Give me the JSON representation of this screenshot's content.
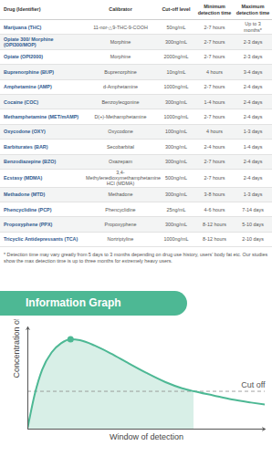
{
  "table": {
    "header": [
      "Drug (Identifier)",
      "Calibrator",
      "Cut-off level",
      "Minimum detection time",
      "Maximum detection time"
    ],
    "rows": [
      [
        "Marijuana (THC)",
        "11-nor-△9-THC-9-COOH",
        "50ng/mL",
        "2-7 hours",
        "Up to 3 months*"
      ],
      [
        "Opiate 300/ Morphine (OPI300/MOP)",
        "Morphine",
        "300ng/mL",
        "2-7 hours",
        "2-3 days"
      ],
      [
        "Opiate (OPI2000)",
        "Morphine",
        "2000ng/mL",
        "2-7 hours",
        "2-3 days"
      ],
      [
        "Buprenorphine (BUP)",
        "Buprenorphine",
        "10ng/mL",
        "4 hours",
        "3-4 days"
      ],
      [
        "Amphetamine (AMP)",
        "d-Amphetamine",
        "1000ng/mL",
        "2-7 hours",
        "2-4 days"
      ],
      [
        "Cocaine (COC)",
        "Benzoylecgonine",
        "300ng/mL",
        "1-4 hours",
        "2-4 days"
      ],
      [
        "Methamphetamine (MET/mAMP)",
        "D(+)-Methamphetamine",
        "1000ng/mL",
        "2-7 hours",
        "2-4 days"
      ],
      [
        "Oxycodone (OXY)",
        "Oxycodone",
        "100ng/mL",
        "4 hours",
        "1-3 days"
      ],
      [
        "Barbiturates (BAR)",
        "Secobarbital",
        "300ng/mL",
        "2-4 hours",
        "1-4 days"
      ],
      [
        "Benzodiazepine (BZO)",
        "Oxazepam",
        "300ng/mL",
        "2-7 hours",
        "2-4 days"
      ],
      [
        "Ecstasy (MDMA)",
        "3,4-Methylenedioxymethamphetamine HCl (MDMA)",
        "500ng/mL",
        "2-7 hours",
        "2-4 days"
      ],
      [
        "Methadone (MTD)",
        "Methadone",
        "300ng/mL",
        "3-8 hours",
        "1-3 days"
      ],
      [
        "Phencyclidine (PCP)",
        "Phencyclidine",
        "25ng/mL",
        "4-6 hours",
        "7-14 days"
      ],
      [
        "Propoxyphene (PPX)",
        "Propoxyphene",
        "300ng/mL",
        "8-12 hours",
        "5-10 days"
      ],
      [
        "Tricyclic Antidepressants (TCA)",
        "Nortriptyline",
        "1000ng/mL",
        "8-12 hours",
        "2-10 days"
      ]
    ]
  },
  "footnote": "* Detection time may vary greatly from 5 days to 3 months depending on drug use history, users' body fat etc. Our studies show the max detection time is up to three months for extremely heavy users.",
  "chart_data": {
    "type": "line",
    "title": "Information Graph",
    "x_label": "Window of detection",
    "y_label": "Concentration of metabolite",
    "x": [
      0,
      3,
      6,
      10,
      14,
      18,
      22,
      28,
      35,
      42,
      50,
      58,
      65,
      70,
      78,
      86,
      94,
      100
    ],
    "values": [
      2,
      35,
      58,
      75,
      84,
      88,
      87,
      82,
      74,
      65,
      55,
      46,
      40,
      37,
      33,
      29,
      26,
      24
    ],
    "color": "#4db894",
    "area_color": "#d8efe7",
    "peak": {
      "x": 18,
      "y": 88
    },
    "cutoff": {
      "value": 37,
      "label": "Cut off"
    },
    "window_end": 70,
    "xlim": [
      0,
      100
    ],
    "ylim": [
      0,
      100
    ],
    "tick_labels": false
  }
}
